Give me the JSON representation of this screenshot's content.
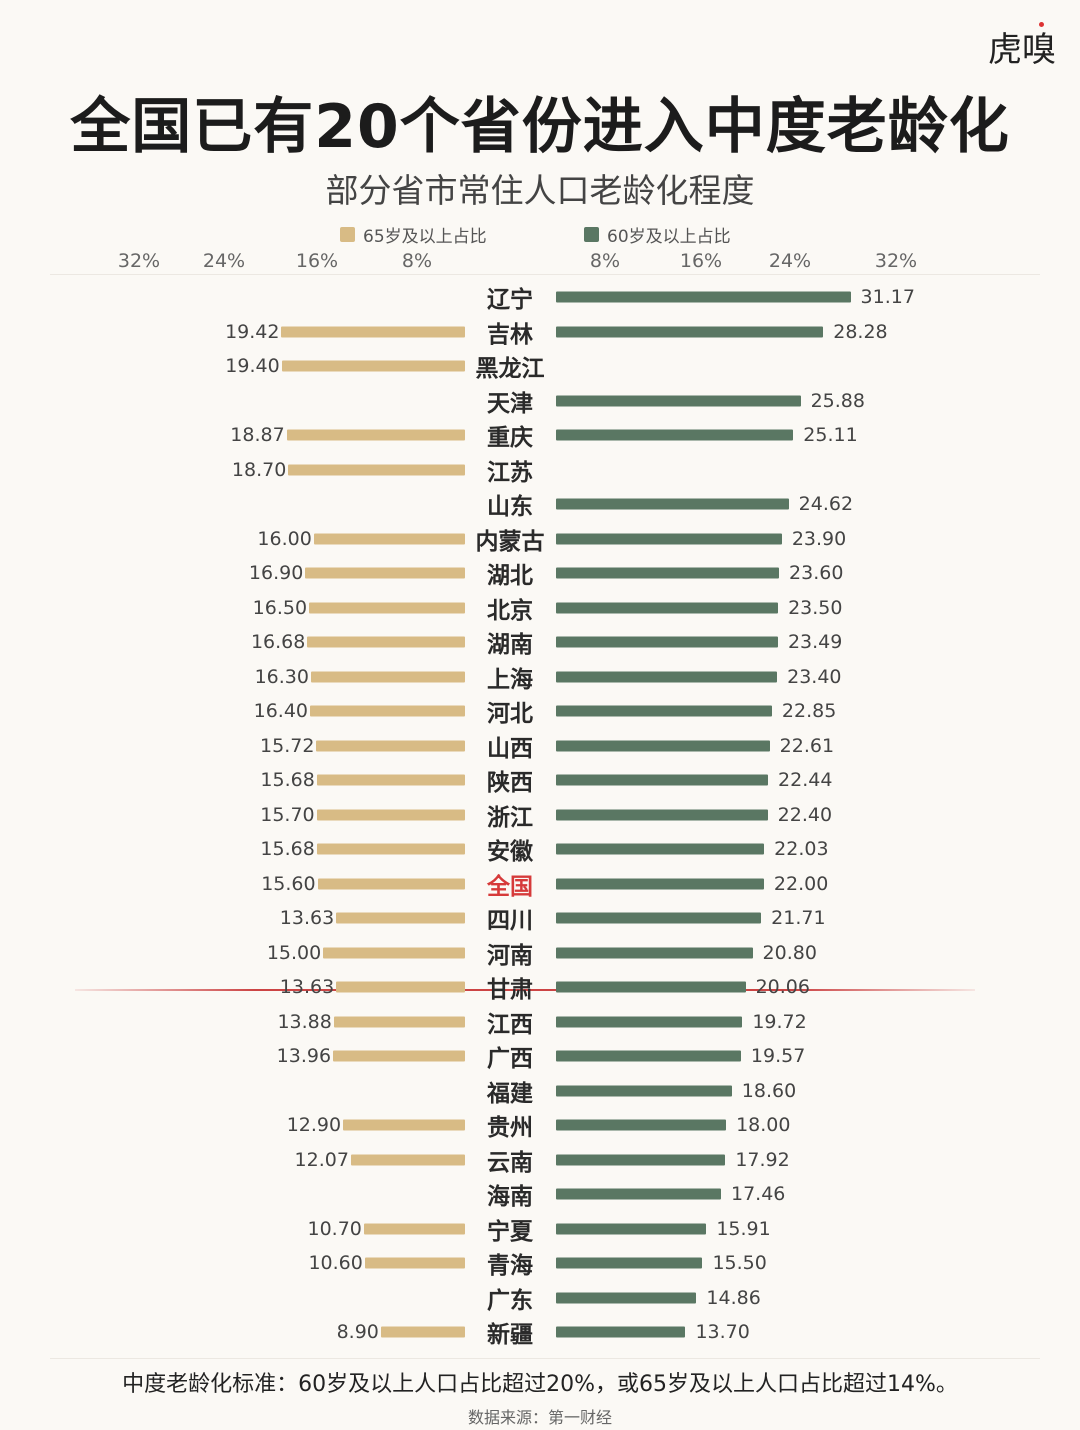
{
  "logo": "虎嗅",
  "chart_data": {
    "type": "bar",
    "orientation": "horizontal-butterfly",
    "title": "全国已有20个省份进入中度老龄化",
    "subtitle": "部分省市常住人口老龄化程度",
    "series": [
      {
        "name": "65岁及以上占比",
        "color": "#d8bb85",
        "side": "left",
        "values": [
          null,
          19.42,
          19.4,
          null,
          18.87,
          18.7,
          null,
          16.0,
          16.9,
          16.5,
          16.68,
          16.3,
          16.4,
          15.72,
          15.68,
          15.7,
          15.68,
          15.6,
          13.63,
          15.0,
          13.63,
          13.88,
          13.96,
          null,
          12.9,
          12.07,
          null,
          10.7,
          10.6,
          null,
          8.9
        ]
      },
      {
        "name": "60岁及以上占比",
        "color": "#5a7763",
        "side": "right",
        "values": [
          31.17,
          28.28,
          null,
          25.88,
          25.11,
          null,
          24.62,
          23.9,
          23.6,
          23.5,
          23.49,
          23.4,
          22.85,
          22.61,
          22.44,
          22.4,
          22.03,
          22.0,
          21.71,
          20.8,
          20.06,
          19.72,
          19.57,
          18.6,
          18.0,
          17.92,
          17.46,
          15.91,
          15.5,
          14.86,
          13.7
        ]
      }
    ],
    "categories": [
      "辽宁",
      "吉林",
      "黑龙江",
      "天津",
      "重庆",
      "江苏",
      "山东",
      "内蒙古",
      "湖北",
      "北京",
      "湖南",
      "上海",
      "河北",
      "山西",
      "陕西",
      "浙江",
      "安徽",
      "全国",
      "四川",
      "河南",
      "甘肃",
      "江西",
      "广西",
      "福建",
      "贵州",
      "云南",
      "海南",
      "宁夏",
      "青海",
      "广东",
      "新疆"
    ],
    "highlight_category": "全国",
    "highlight_color": "#d63a3a",
    "left_ticks": [
      "32%",
      "24%",
      "16%",
      "8%"
    ],
    "right_ticks": [
      "8%",
      "16%",
      "24%",
      "32%"
    ],
    "threshold_line_after": "甘肃",
    "threshold_line_color": "#c44444",
    "xlim": [
      0,
      32
    ],
    "legend_position": "top"
  },
  "note": "中度老龄化标准：60岁及以上人口占比超过20%，或65岁及以上人口占比超过14%。",
  "source": "数据来源：第一财经"
}
